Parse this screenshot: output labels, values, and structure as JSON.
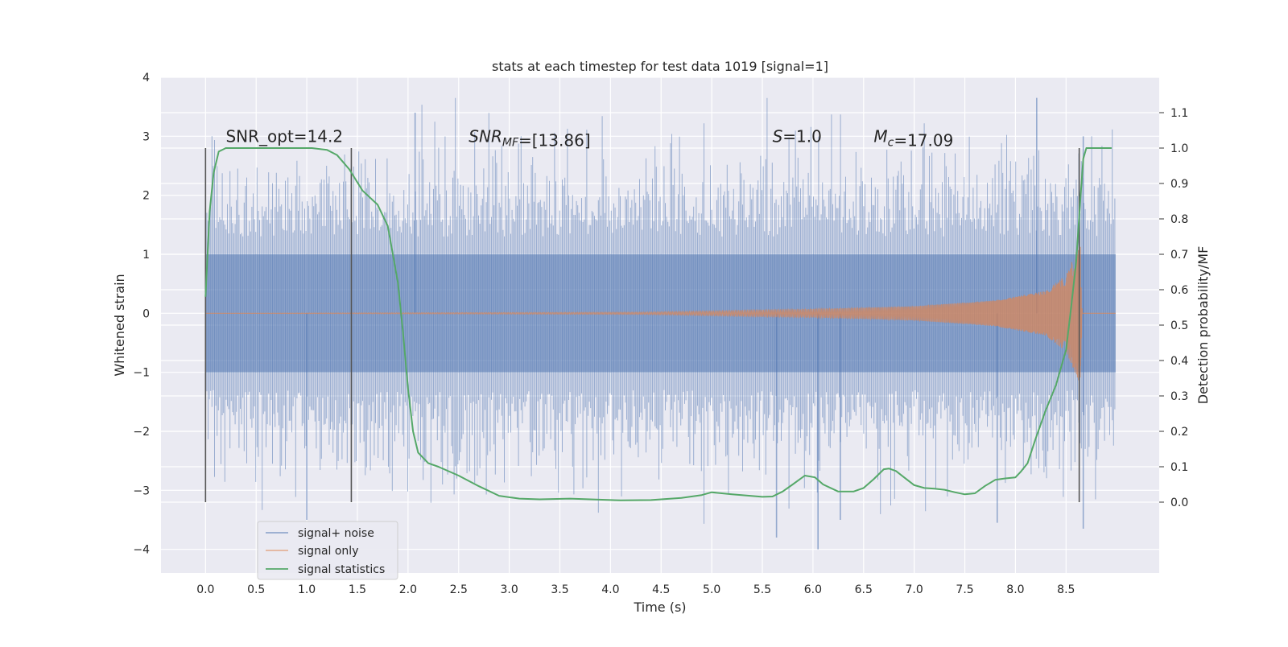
{
  "chart_data": {
    "type": "line",
    "title": "stats at each timestep for test data 1019 [signal=1]",
    "xlabel": "Time (s)",
    "ylabel": "Whitened strain",
    "ylabel_right": "Detection probability/MF",
    "xlim": [
      -0.44,
      9.42
    ],
    "ylim": [
      -4.4,
      4.0
    ],
    "ylim_right": [
      -0.2,
      1.2
    ],
    "x_ticks": [
      0.0,
      0.5,
      1.0,
      1.5,
      2.0,
      2.5,
      3.0,
      3.5,
      4.0,
      4.5,
      5.0,
      5.5,
      6.0,
      6.5,
      7.0,
      7.5,
      8.0,
      8.5
    ],
    "x_tick_labels": [
      "0.0",
      "0.5",
      "1.0",
      "1.5",
      "2.0",
      "2.5",
      "3.0",
      "3.5",
      "4.0",
      "4.5",
      "5.0",
      "5.5",
      "6.0",
      "6.5",
      "7.0",
      "7.5",
      "8.0",
      "8.5"
    ],
    "y_ticks": [
      -4,
      -3,
      -2,
      -1,
      0,
      1,
      2,
      3,
      4
    ],
    "y_tick_labels": [
      "−4",
      "−3",
      "−2",
      "−1",
      "0",
      "1",
      "2",
      "3",
      "4"
    ],
    "y_right_ticks": [
      0.0,
      0.1,
      0.2,
      0.3,
      0.4,
      0.5,
      0.6,
      0.7,
      0.8,
      0.9,
      1.0,
      1.1
    ],
    "y_right_tick_labels": [
      "0.0",
      "0.1",
      "0.2",
      "0.3",
      "0.4",
      "0.5",
      "0.6",
      "0.7",
      "0.8",
      "0.9",
      "1.0",
      "1.1"
    ],
    "grid": true,
    "legend_position": "lower-left",
    "annotations": [
      {
        "parts": [
          {
            "t": "SNR_opt=14.2",
            "i": false
          }
        ],
        "x": 0.2,
        "y": 2.9
      },
      {
        "parts": [
          {
            "t": "SNR",
            "i": true
          },
          {
            "t": "MF",
            "i": true,
            "sub": true
          },
          {
            "t": "=[13.86]",
            "i": false
          }
        ],
        "x": 2.6,
        "y": 2.9
      },
      {
        "parts": [
          {
            "t": "S",
            "i": true
          },
          {
            "t": "=1.0",
            "i": false
          }
        ],
        "x": 5.6,
        "y": 2.9
      },
      {
        "parts": [
          {
            "t": "M",
            "i": true
          },
          {
            "t": "c",
            "i": true,
            "sub": true
          },
          {
            "t": "=17.09",
            "i": false
          }
        ],
        "x": 6.6,
        "y": 2.9
      }
    ],
    "vertical_markers": [
      {
        "x": 0.0,
        "y_range": [
          -3.2,
          2.8
        ]
      },
      {
        "x": 1.44,
        "y_range": [
          -3.2,
          2.8
        ]
      },
      {
        "x": 8.63,
        "y_range": [
          -3.2,
          2.8
        ]
      }
    ],
    "series": [
      {
        "name": "signal+ noise",
        "kind": "noise_band",
        "color": "#4c72b0",
        "x_range": [
          0.0,
          8.99
        ],
        "envelope": {
          "core": [
            -1.0,
            1.0
          ],
          "typical_peaks": [
            -2.4,
            2.6
          ],
          "max": 3.65,
          "min": -4.0
        },
        "notable_peaks": [
          {
            "x": 2.07,
            "y": 3.4
          },
          {
            "x": 8.21,
            "y": 3.65
          },
          {
            "x": 8.67,
            "y": 3.0
          },
          {
            "x": 1.0,
            "y": -3.5
          },
          {
            "x": 6.05,
            "y": -4.0
          },
          {
            "x": 5.64,
            "y": -3.8
          },
          {
            "x": 8.67,
            "y": -3.65
          },
          {
            "x": 6.27,
            "y": -3.5
          },
          {
            "x": 7.82,
            "y": -3.55
          }
        ]
      },
      {
        "name": "signal only",
        "kind": "chirp",
        "color": "#dd8452",
        "x_range": [
          0.0,
          8.66
        ],
        "amplitude_points": [
          [
            0.0,
            0.0
          ],
          [
            4.3,
            0.02
          ],
          [
            5.0,
            0.04
          ],
          [
            6.0,
            0.07
          ],
          [
            7.0,
            0.12
          ],
          [
            7.8,
            0.22
          ],
          [
            8.3,
            0.38
          ],
          [
            8.5,
            0.65
          ],
          [
            8.6,
            1.05
          ],
          [
            8.64,
            1.2
          ],
          [
            8.66,
            0.0
          ]
        ]
      },
      {
        "name": "signal statistics",
        "kind": "line",
        "axis": "right",
        "color": "#55a868",
        "x": [
          0.0,
          0.04,
          0.08,
          0.13,
          0.2,
          0.3,
          0.5,
          0.8,
          1.05,
          1.2,
          1.3,
          1.42,
          1.55,
          1.7,
          1.8,
          1.9,
          1.95,
          2.0,
          2.05,
          2.1,
          2.2,
          2.3,
          2.5,
          2.7,
          2.9,
          3.1,
          3.3,
          3.6,
          3.8,
          4.1,
          4.4,
          4.7,
          4.9,
          5.0,
          5.2,
          5.5,
          5.6,
          5.7,
          5.8,
          5.92,
          6.02,
          6.1,
          6.25,
          6.4,
          6.5,
          6.6,
          6.7,
          6.75,
          6.82,
          6.9,
          7.0,
          7.1,
          7.2,
          7.3,
          7.4,
          7.5,
          7.6,
          7.7,
          7.8,
          7.9,
          8.0,
          8.05,
          8.12,
          8.2,
          8.3,
          8.4,
          8.5,
          8.55,
          8.6,
          8.64,
          8.67,
          8.7,
          8.76,
          8.84,
          8.95
        ],
        "y": [
          0.58,
          0.82,
          0.93,
          0.99,
          1.0,
          1.0,
          1.0,
          1.0,
          1.0,
          0.995,
          0.98,
          0.94,
          0.88,
          0.84,
          0.78,
          0.62,
          0.48,
          0.32,
          0.2,
          0.14,
          0.11,
          0.1,
          0.075,
          0.045,
          0.018,
          0.01,
          0.008,
          0.01,
          0.008,
          0.005,
          0.006,
          0.012,
          0.02,
          0.028,
          0.022,
          0.015,
          0.016,
          0.03,
          0.05,
          0.075,
          0.07,
          0.05,
          0.03,
          0.03,
          0.04,
          0.065,
          0.093,
          0.095,
          0.088,
          0.07,
          0.048,
          0.04,
          0.038,
          0.035,
          0.028,
          0.022,
          0.025,
          0.046,
          0.063,
          0.067,
          0.07,
          0.085,
          0.11,
          0.18,
          0.26,
          0.33,
          0.43,
          0.55,
          0.68,
          0.85,
          0.97,
          1.0,
          1.0,
          1.0,
          1.0
        ]
      }
    ]
  }
}
